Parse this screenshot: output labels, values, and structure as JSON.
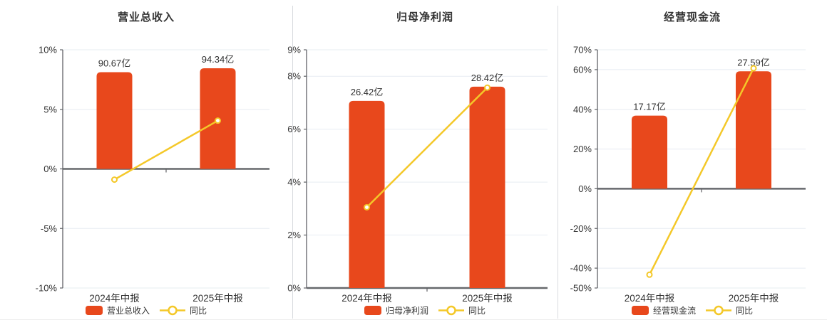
{
  "colors": {
    "bar": "#e8481c",
    "line": "#f4c829",
    "grid": "#e7ecf2",
    "axis": "#606266",
    "zero_line": "#66686c",
    "text": "#333333",
    "divider": "#d9dbdf",
    "marker_fill": "#ffffff"
  },
  "chart_data": [
    {
      "type": "bar",
      "title": "营业总收入",
      "unit": "亿",
      "categories": [
        "2024年中报",
        "2025年中报"
      ],
      "series": [
        {
          "name": "营业总收入",
          "kind": "bar",
          "values": [
            90.67,
            94.34
          ],
          "labels": [
            "90.67亿",
            "94.34亿"
          ]
        },
        {
          "name": "同比",
          "kind": "line",
          "values_pct": [
            -0.9,
            4.05
          ]
        }
      ],
      "y_axis": {
        "min": -10,
        "max": 10,
        "ticks": [
          10,
          5,
          0,
          -5,
          -10
        ],
        "tick_labels": [
          "10%",
          "5%",
          "0%",
          "-5%",
          "-10%"
        ]
      },
      "legend": [
        "营业总收入",
        "同比"
      ],
      "legend_position": "bottom",
      "grid": true
    },
    {
      "type": "bar",
      "title": "归母净利润",
      "unit": "亿",
      "categories": [
        "2024年中报",
        "2025年中报"
      ],
      "series": [
        {
          "name": "归母净利润",
          "kind": "bar",
          "values": [
            26.42,
            28.42
          ],
          "labels": [
            "26.42亿",
            "28.42亿"
          ]
        },
        {
          "name": "同比",
          "kind": "line",
          "values_pct": [
            3.05,
            7.57
          ]
        }
      ],
      "y_axis": {
        "min": 0,
        "max": 9,
        "ticks": [
          9,
          8,
          6,
          4,
          2,
          0
        ],
        "tick_labels": [
          "9%",
          "8%",
          "6%",
          "4%",
          "2%",
          "0%"
        ]
      },
      "legend": [
        "归母净利润",
        "同比"
      ],
      "legend_position": "bottom",
      "grid": true
    },
    {
      "type": "bar",
      "title": "经营现金流",
      "unit": "亿",
      "categories": [
        "2024年中报",
        "2025年中报"
      ],
      "series": [
        {
          "name": "经营现金流",
          "kind": "bar",
          "values": [
            17.17,
            27.59
          ],
          "labels": [
            "17.17亿",
            "27.59亿"
          ]
        },
        {
          "name": "同比",
          "kind": "line",
          "values_pct": [
            -43.3,
            60.69
          ]
        }
      ],
      "y_axis": {
        "min": -50,
        "max": 70,
        "ticks": [
          70,
          60,
          40,
          20,
          0,
          -20,
          -40,
          -50
        ],
        "tick_labels": [
          "70%",
          "60%",
          "40%",
          "20%",
          "0%",
          "-20%",
          "-40%",
          "-50%"
        ]
      },
      "legend": [
        "经营现金流",
        "同比"
      ],
      "legend_position": "bottom",
      "grid": true
    }
  ]
}
